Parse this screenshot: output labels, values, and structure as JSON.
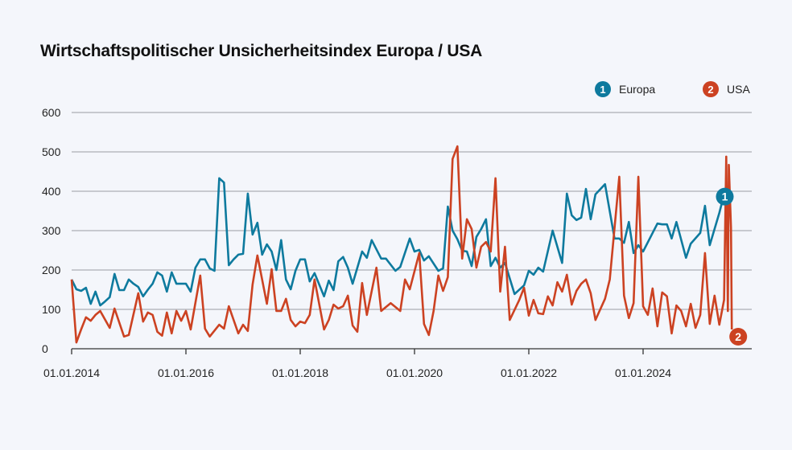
{
  "chart_data": {
    "type": "line",
    "title": "Wirtschaftspolitischer Unsicherheitsindex Europa / USA",
    "xlabel": "",
    "ylabel": "",
    "ylim": [
      0,
      600
    ],
    "yticks": [
      "0",
      "100",
      "200",
      "300",
      "400",
      "500",
      "600"
    ],
    "xticks": [
      {
        "date": "2014-01-01",
        "label": "01.01.2014"
      },
      {
        "date": "2016-01-01",
        "label": "01.01.2016"
      },
      {
        "date": "2018-01-01",
        "label": "01.01.2018"
      },
      {
        "date": "2020-01-01",
        "label": "01.01.2020"
      },
      {
        "date": "2022-01-01",
        "label": "01.01.2022"
      },
      {
        "date": "2024-01-01",
        "label": "01.01.2024"
      }
    ],
    "grid": true,
    "legend_position": "top-right",
    "series": [
      {
        "name": "Europa",
        "marker": "1",
        "color": "#0e7a9e",
        "points": [
          [
            "2014-01",
            176
          ],
          [
            "2014-02",
            151
          ],
          [
            "2014-03",
            147
          ],
          [
            "2014-04",
            155
          ],
          [
            "2014-05",
            114
          ],
          [
            "2014-06",
            145
          ],
          [
            "2014-07",
            110
          ],
          [
            "2014-08",
            120
          ],
          [
            "2014-09",
            131
          ],
          [
            "2014-10",
            190
          ],
          [
            "2014-11",
            149
          ],
          [
            "2014-12",
            149
          ],
          [
            "2015-01",
            176
          ],
          [
            "2015-02",
            165
          ],
          [
            "2015-03",
            157
          ],
          [
            "2015-04",
            133
          ],
          [
            "2015-05",
            150
          ],
          [
            "2015-06",
            165
          ],
          [
            "2015-07",
            194
          ],
          [
            "2015-08",
            186
          ],
          [
            "2015-09",
            145
          ],
          [
            "2015-10",
            194
          ],
          [
            "2015-11",
            165
          ],
          [
            "2015-12",
            165
          ],
          [
            "2016-01",
            165
          ],
          [
            "2016-02",
            145
          ],
          [
            "2016-03",
            206
          ],
          [
            "2016-04",
            227
          ],
          [
            "2016-05",
            227
          ],
          [
            "2016-06",
            204
          ],
          [
            "2016-07",
            198
          ],
          [
            "2016-08",
            433
          ],
          [
            "2016-09",
            422
          ],
          [
            "2016-10",
            212
          ],
          [
            "2016-11",
            227
          ],
          [
            "2016-12",
            239
          ],
          [
            "2017-01",
            241
          ],
          [
            "2017-02",
            394
          ],
          [
            "2017-03",
            290
          ],
          [
            "2017-04",
            320
          ],
          [
            "2017-05",
            239
          ],
          [
            "2017-06",
            265
          ],
          [
            "2017-07",
            247
          ],
          [
            "2017-08",
            200
          ],
          [
            "2017-09",
            276
          ],
          [
            "2017-10",
            176
          ],
          [
            "2017-11",
            151
          ],
          [
            "2017-12",
            198
          ],
          [
            "2018-01",
            227
          ],
          [
            "2018-02",
            227
          ],
          [
            "2018-03",
            171
          ],
          [
            "2018-04",
            192
          ],
          [
            "2018-06",
            133
          ],
          [
            "2018-07",
            173
          ],
          [
            "2018-08",
            149
          ],
          [
            "2018-09",
            222
          ],
          [
            "2018-10",
            233
          ],
          [
            "2018-11",
            206
          ],
          [
            "2018-12",
            165
          ],
          [
            "2019-02",
            247
          ],
          [
            "2019-03",
            231
          ],
          [
            "2019-04",
            276
          ],
          [
            "2019-06",
            229
          ],
          [
            "2019-07",
            229
          ],
          [
            "2019-09",
            198
          ],
          [
            "2019-10",
            208
          ],
          [
            "2019-12",
            280
          ],
          [
            "2020-01",
            247
          ],
          [
            "2020-02",
            251
          ],
          [
            "2020-03",
            224
          ],
          [
            "2020-04",
            235
          ],
          [
            "2020-06",
            198
          ],
          [
            "2020-07",
            204
          ],
          [
            "2020-08",
            361
          ],
          [
            "2020-09",
            300
          ],
          [
            "2020-10",
            278
          ],
          [
            "2020-11",
            249
          ],
          [
            "2020-12",
            247
          ],
          [
            "2021-01",
            210
          ],
          [
            "2021-02",
            284
          ],
          [
            "2021-03",
            304
          ],
          [
            "2021-04",
            329
          ],
          [
            "2021-05",
            210
          ],
          [
            "2021-06",
            231
          ],
          [
            "2021-07",
            206
          ],
          [
            "2021-08",
            218
          ],
          [
            "2021-10",
            139
          ],
          [
            "2021-12",
            161
          ],
          [
            "2022-01",
            198
          ],
          [
            "2022-02",
            188
          ],
          [
            "2022-03",
            206
          ],
          [
            "2022-04",
            196
          ],
          [
            "2022-06",
            300
          ],
          [
            "2022-08",
            218
          ],
          [
            "2022-09",
            394
          ],
          [
            "2022-10",
            339
          ],
          [
            "2022-11",
            327
          ],
          [
            "2022-12",
            333
          ],
          [
            "2023-01",
            406
          ],
          [
            "2023-02",
            329
          ],
          [
            "2023-03",
            392
          ],
          [
            "2023-05",
            418
          ],
          [
            "2023-07",
            280
          ],
          [
            "2023-08",
            280
          ],
          [
            "2023-09",
            269
          ],
          [
            "2023-10",
            322
          ],
          [
            "2023-11",
            243
          ],
          [
            "2023-12",
            263
          ],
          [
            "2024-01",
            247
          ],
          [
            "2024-04",
            318
          ],
          [
            "2024-05",
            316
          ],
          [
            "2024-06",
            316
          ],
          [
            "2024-07",
            280
          ],
          [
            "2024-08",
            322
          ],
          [
            "2024-10",
            231
          ],
          [
            "2024-11",
            267
          ],
          [
            "2025-01",
            294
          ],
          [
            "2025-02",
            363
          ],
          [
            "2025-03",
            263
          ],
          [
            "2025-05",
            345
          ],
          [
            "2025-06",
            392
          ],
          [
            "2025-07",
            415
          ]
        ]
      },
      {
        "name": "USA",
        "marker": "2",
        "color": "#cc4222",
        "points": [
          [
            "2014-01",
            176
          ],
          [
            "2014-02",
            16
          ],
          [
            "2014-03",
            49
          ],
          [
            "2014-04",
            80
          ],
          [
            "2014-05",
            71
          ],
          [
            "2014-06",
            86
          ],
          [
            "2014-07",
            96
          ],
          [
            "2014-09",
            53
          ],
          [
            "2014-10",
            102
          ],
          [
            "2014-12",
            31
          ],
          [
            "2015-01",
            35
          ],
          [
            "2015-03",
            141
          ],
          [
            "2015-04",
            69
          ],
          [
            "2015-05",
            92
          ],
          [
            "2015-06",
            86
          ],
          [
            "2015-07",
            43
          ],
          [
            "2015-08",
            33
          ],
          [
            "2015-09",
            92
          ],
          [
            "2015-10",
            39
          ],
          [
            "2015-11",
            96
          ],
          [
            "2015-12",
            71
          ],
          [
            "2016-01",
            96
          ],
          [
            "2016-02",
            49
          ],
          [
            "2016-04",
            186
          ],
          [
            "2016-05",
            51
          ],
          [
            "2016-06",
            31
          ],
          [
            "2016-08",
            61
          ],
          [
            "2016-09",
            51
          ],
          [
            "2016-10",
            108
          ],
          [
            "2016-12",
            39
          ],
          [
            "2017-01",
            61
          ],
          [
            "2017-02",
            45
          ],
          [
            "2017-03",
            163
          ],
          [
            "2017-04",
            237
          ],
          [
            "2017-06",
            114
          ],
          [
            "2017-07",
            202
          ],
          [
            "2017-08",
            96
          ],
          [
            "2017-09",
            96
          ],
          [
            "2017-10",
            127
          ],
          [
            "2017-11",
            73
          ],
          [
            "2017-12",
            57
          ],
          [
            "2018-01",
            69
          ],
          [
            "2018-02",
            65
          ],
          [
            "2018-03",
            86
          ],
          [
            "2018-04",
            176
          ],
          [
            "2018-06",
            49
          ],
          [
            "2018-07",
            73
          ],
          [
            "2018-08",
            112
          ],
          [
            "2018-09",
            102
          ],
          [
            "2018-10",
            108
          ],
          [
            "2018-11",
            135
          ],
          [
            "2018-12",
            59
          ],
          [
            "2019-01",
            43
          ],
          [
            "2019-02",
            167
          ],
          [
            "2019-03",
            86
          ],
          [
            "2019-05",
            206
          ],
          [
            "2019-06",
            96
          ],
          [
            "2019-08",
            116
          ],
          [
            "2019-10",
            96
          ],
          [
            "2019-11",
            176
          ],
          [
            "2019-12",
            151
          ],
          [
            "2020-02",
            243
          ],
          [
            "2020-03",
            63
          ],
          [
            "2020-04",
            35
          ],
          [
            "2020-05",
            96
          ],
          [
            "2020-06",
            186
          ],
          [
            "2020-07",
            147
          ],
          [
            "2020-08",
            182
          ],
          [
            "2020-09",
            482
          ],
          [
            "2020-10",
            514
          ],
          [
            "2020-11",
            229
          ],
          [
            "2020-12",
            329
          ],
          [
            "2021-01",
            304
          ],
          [
            "2021-02",
            206
          ],
          [
            "2021-03",
            259
          ],
          [
            "2021-04",
            271
          ],
          [
            "2021-05",
            247
          ],
          [
            "2021-06",
            433
          ],
          [
            "2021-07",
            145
          ],
          [
            "2021-08",
            259
          ],
          [
            "2021-09",
            73
          ],
          [
            "2021-11",
            124
          ],
          [
            "2021-12",
            155
          ],
          [
            "2022-01",
            84
          ],
          [
            "2022-02",
            124
          ],
          [
            "2022-03",
            90
          ],
          [
            "2022-04",
            88
          ],
          [
            "2022-05",
            133
          ],
          [
            "2022-06",
            110
          ],
          [
            "2022-07",
            169
          ],
          [
            "2022-08",
            145
          ],
          [
            "2022-09",
            188
          ],
          [
            "2022-10",
            112
          ],
          [
            "2022-11",
            147
          ],
          [
            "2022-12",
            165
          ],
          [
            "2023-01",
            176
          ],
          [
            "2023-02",
            141
          ],
          [
            "2023-03",
            73
          ],
          [
            "2023-05",
            127
          ],
          [
            "2023-06",
            176
          ],
          [
            "2023-08",
            437
          ],
          [
            "2023-09",
            135
          ],
          [
            "2023-10",
            78
          ],
          [
            "2023-11",
            116
          ],
          [
            "2023-12",
            437
          ],
          [
            "2024-01",
            108
          ],
          [
            "2024-02",
            86
          ],
          [
            "2024-03",
            153
          ],
          [
            "2024-04",
            57
          ],
          [
            "2024-05",
            143
          ],
          [
            "2024-06",
            133
          ],
          [
            "2024-07",
            39
          ],
          [
            "2024-08",
            110
          ],
          [
            "2024-09",
            96
          ],
          [
            "2024-10",
            57
          ],
          [
            "2024-11",
            114
          ],
          [
            "2024-12",
            53
          ],
          [
            "2025-01",
            86
          ],
          [
            "2025-02",
            243
          ],
          [
            "2025-03",
            63
          ],
          [
            "2025-04",
            135
          ],
          [
            "2025-05",
            61
          ],
          [
            "2025-06-01",
            124
          ],
          [
            "2025-06-15",
            488
          ],
          [
            "2025-06-25",
            96
          ],
          [
            "2025-07-01",
            467
          ],
          [
            "2025-07-15",
            308
          ],
          [
            "2025-07-20",
            49
          ]
        ]
      }
    ]
  }
}
